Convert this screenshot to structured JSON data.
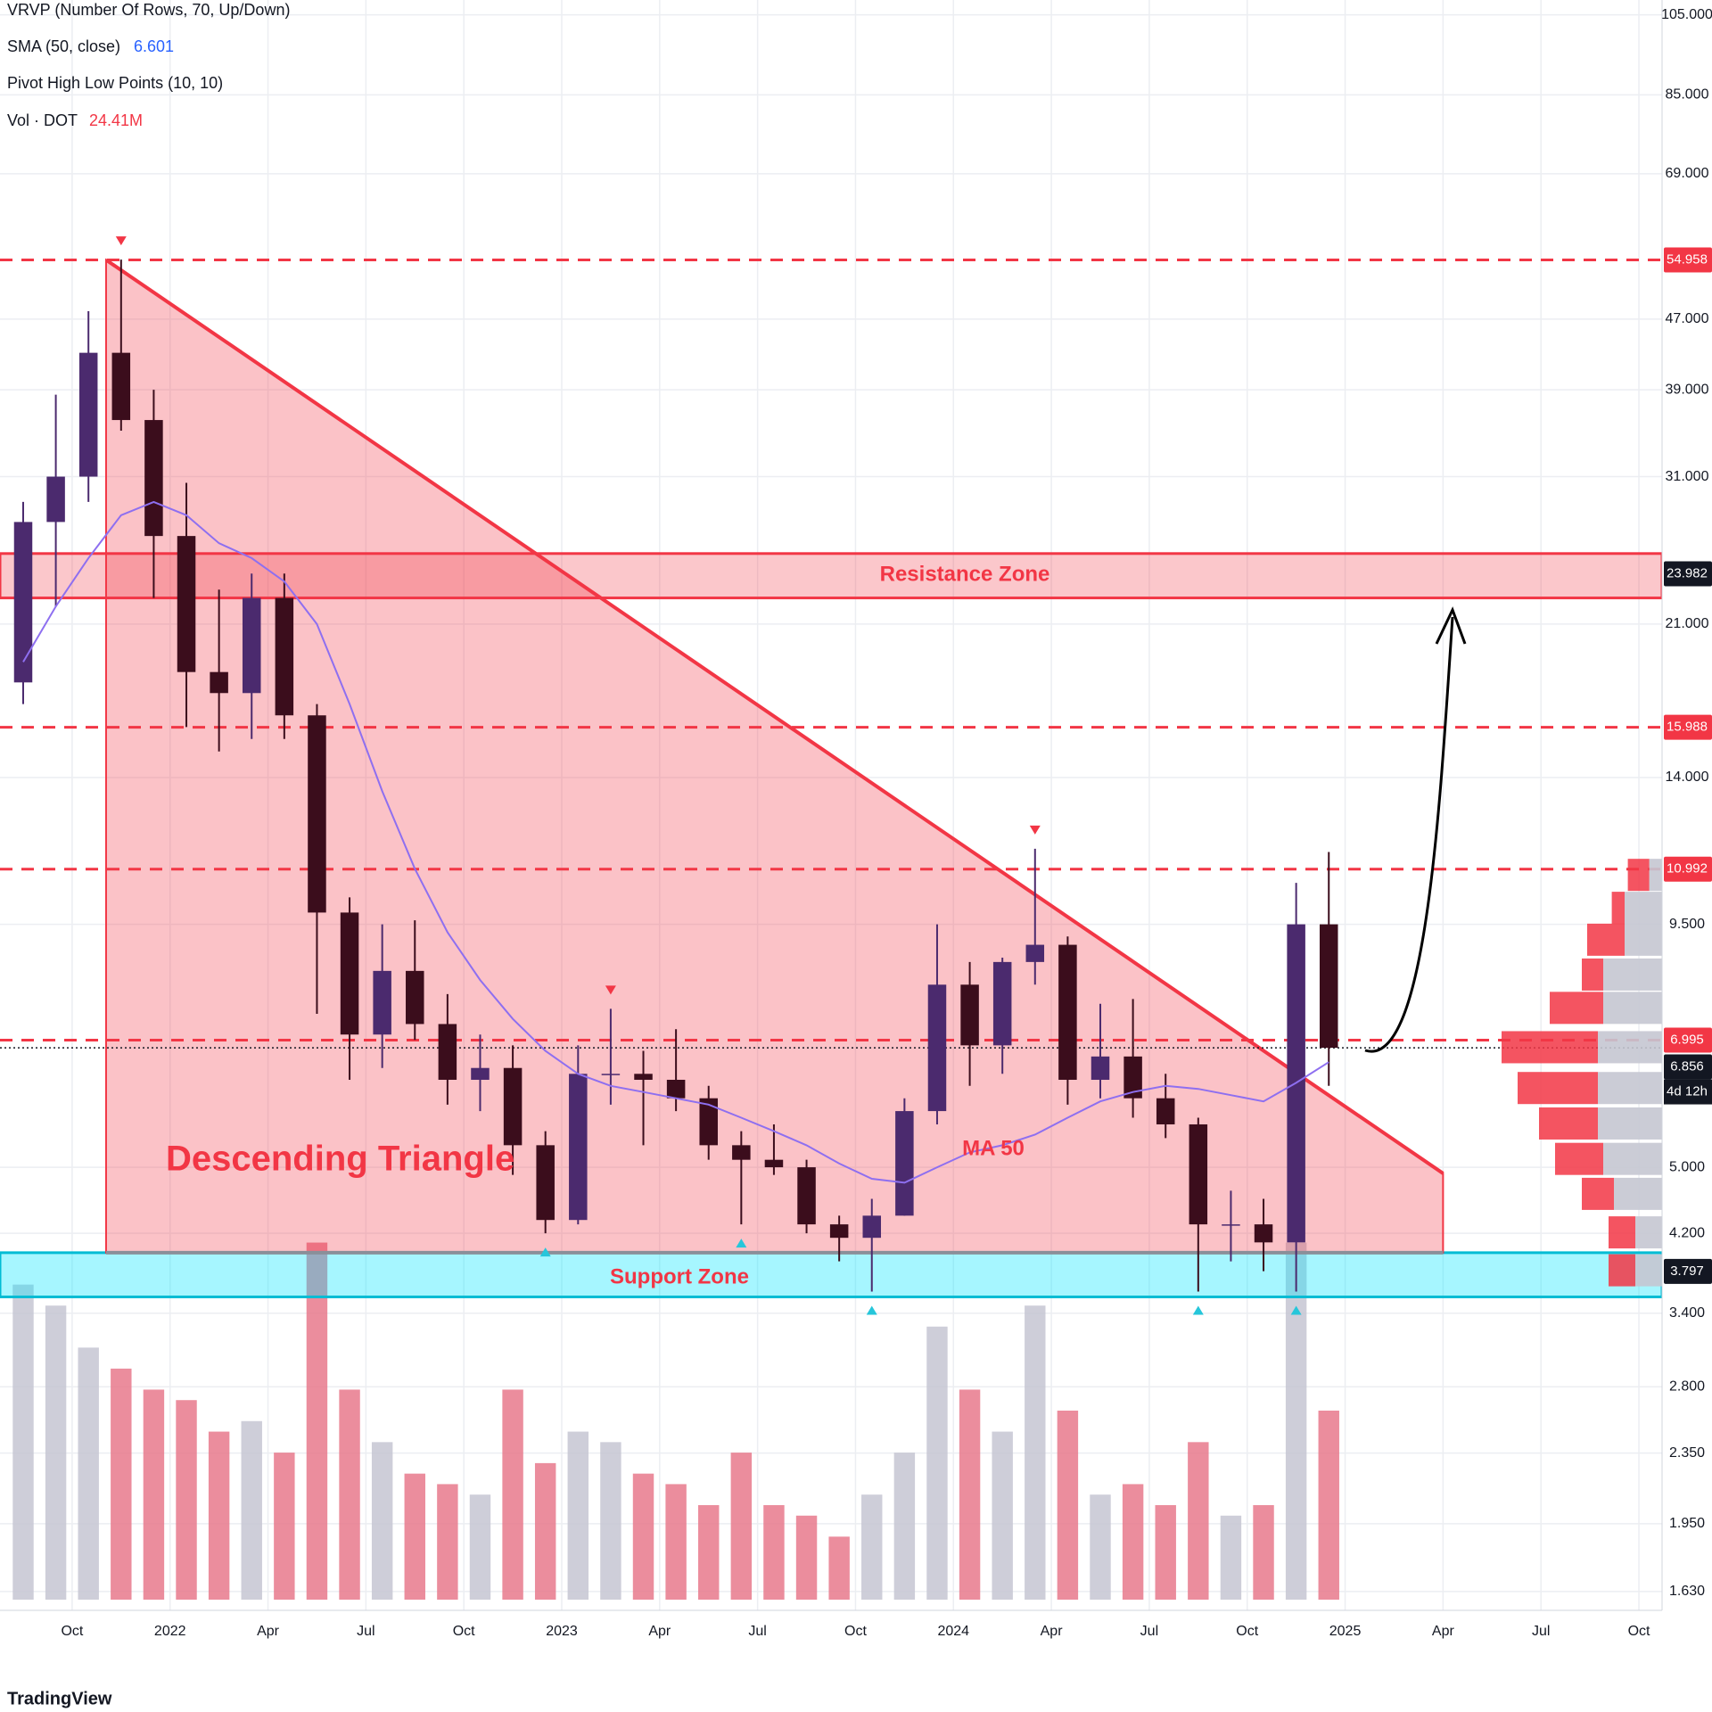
{
  "chart_data": {
    "type": "candlestick",
    "legend": [
      "VRVP (Number Of Rows, 70, Up/Down)",
      "SMA (50, close)",
      "Pivot High Low Points (10, 10)",
      "Vol · DOT"
    ],
    "volume_label": "24.41M",
    "brand": "TradingView",
    "annotations": {
      "triangle": "Descending Triangle",
      "resistance": "Resistance Zone",
      "support": "Support Zone",
      "ma": "MA 50"
    },
    "log_scale": true,
    "grid": true,
    "xlim": [
      -2.21,
      48.71
    ],
    "ylim": [
      1.551,
      109.2
    ],
    "xticks": [
      {
        "value": 0,
        "label": "Oct"
      },
      {
        "value": 3,
        "label": "2022"
      },
      {
        "value": 6,
        "label": "Apr"
      },
      {
        "value": 9,
        "label": "Jul"
      },
      {
        "value": 12,
        "label": "Oct"
      },
      {
        "value": 15,
        "label": "2023"
      },
      {
        "value": 18,
        "label": "Apr"
      },
      {
        "value": 21,
        "label": "Jul"
      },
      {
        "value": 24,
        "label": "Oct"
      },
      {
        "value": 27,
        "label": "2024"
      },
      {
        "value": 30,
        "label": "Apr"
      },
      {
        "value": 33,
        "label": "Jul"
      },
      {
        "value": 36,
        "label": "Oct"
      },
      {
        "value": 39,
        "label": "2025"
      },
      {
        "value": 42,
        "label": "Apr"
      },
      {
        "value": 45,
        "label": "Jul"
      },
      {
        "value": 48,
        "label": "Oct"
      }
    ],
    "yticks": [
      {
        "value": 105,
        "label": "105.000"
      },
      {
        "value": 85,
        "label": "85.000"
      },
      {
        "value": 69,
        "label": "69.000"
      },
      {
        "value": 47,
        "label": "47.000"
      },
      {
        "value": 39,
        "label": "39.000"
      },
      {
        "value": 31,
        "label": "31.000"
      },
      {
        "value": 21,
        "label": "21.000"
      },
      {
        "value": 14,
        "label": "14.000"
      },
      {
        "value": 9.5,
        "label": "9.500"
      },
      {
        "value": 5,
        "label": "5.000"
      },
      {
        "value": 4.2,
        "label": "4.200"
      },
      {
        "value": 3.4,
        "label": "3.400"
      },
      {
        "value": 2.8,
        "label": "2.800"
      },
      {
        "value": 2.35,
        "label": "2.350"
      },
      {
        "value": 1.95,
        "label": "1.950"
      },
      {
        "value": 1.63,
        "label": "1.630"
      }
    ],
    "x": [
      -1.5,
      -0.5,
      0.5,
      1.5,
      2.5,
      3.5,
      4.5,
      5.5,
      6.5,
      7.5,
      8.5,
      9.5,
      10.5,
      11.5,
      12.5,
      13.5,
      14.5,
      15.5,
      16.5,
      17.5,
      18.5,
      19.5,
      20.5,
      21.5,
      22.5,
      23.5,
      24.5,
      25.5,
      26.5,
      27.5,
      28.5,
      29.5,
      30.5,
      31.5,
      32.5,
      33.5,
      34.5,
      35.5,
      36.5,
      37.5,
      38.5
    ],
    "open": [
      18,
      27.5,
      31,
      43,
      36,
      26.5,
      18.5,
      17.5,
      22.5,
      16.5,
      9.8,
      7.1,
      8.4,
      7.3,
      6.3,
      6.5,
      5.3,
      4.35,
      6.4,
      6.4,
      6.3,
      6,
      5.3,
      5.1,
      5,
      4.3,
      4.15,
      4.4,
      5.8,
      8.1,
      6.9,
      8.6,
      9,
      6.3,
      6.7,
      6,
      5.6,
      4.3,
      4.3,
      4.1,
      9.5
    ],
    "high": [
      29,
      38.5,
      48,
      55,
      39,
      30.5,
      23,
      24,
      24,
      17,
      10.2,
      9.5,
      9.6,
      7.9,
      7.1,
      6.9,
      5.5,
      6.9,
      7.6,
      6.8,
      7.2,
      6.2,
      5.5,
      5.6,
      5.1,
      4.4,
      4.6,
      6,
      9.5,
      8.6,
      8.7,
      11.6,
      9.2,
      7.7,
      7.8,
      6.4,
      5.7,
      4.7,
      4.6,
      10.6,
      11.5
    ],
    "low": [
      17,
      22,
      29,
      35,
      22.5,
      16,
      15,
      15.5,
      15.5,
      7.5,
      6.3,
      6.5,
      7,
      5.9,
      5.8,
      4.9,
      4.2,
      4.3,
      5.9,
      5.3,
      5.8,
      5.1,
      4.3,
      4.9,
      4.2,
      3.9,
      3.6,
      4.4,
      5.6,
      6.2,
      6.4,
      8.1,
      5.9,
      6,
      5.7,
      5.4,
      3.6,
      3.9,
      3.8,
      3.6,
      6.2
    ],
    "close": [
      27.5,
      31,
      43,
      36,
      26.5,
      18.5,
      17.5,
      22.5,
      16.5,
      9.8,
      7.1,
      8.4,
      7.3,
      6.3,
      6.5,
      5.3,
      4.35,
      6.4,
      6.4,
      6.3,
      6,
      5.3,
      5.1,
      5,
      4.3,
      4.15,
      4.4,
      5.8,
      8.1,
      6.9,
      8.6,
      9,
      6.3,
      6.7,
      6,
      5.6,
      4.3,
      4.3,
      4.1,
      9.5,
      6.856
    ],
    "up_color": "#4b2a6e",
    "down_color": "#3b0d1c",
    "volume": {
      "values": [
        150,
        140,
        120,
        110,
        100,
        95,
        80,
        85,
        70,
        170,
        100,
        75,
        60,
        55,
        50,
        100,
        65,
        80,
        75,
        60,
        55,
        45,
        70,
        45,
        40,
        30,
        50,
        70,
        130,
        100,
        80,
        140,
        90,
        50,
        55,
        45,
        75,
        40,
        45,
        170,
        90
      ],
      "lim": [
        0,
        180
      ],
      "up_color": "#c5c6d2",
      "down_color": "#e8798c"
    },
    "sma": {
      "color": "#8e6ff0",
      "values": [
        19,
        22,
        25,
        28,
        29,
        28,
        26,
        25,
        23.5,
        21,
        17,
        13.5,
        11,
        9.3,
        8.2,
        7.4,
        6.8,
        6.4,
        6.2,
        6.1,
        6,
        5.9,
        5.7,
        5.5,
        5.3,
        5.05,
        4.85,
        4.8,
        5.0,
        5.2,
        5.3,
        5.45,
        5.7,
        5.95,
        6.1,
        6.2,
        6.15,
        6.05,
        5.95,
        6.25,
        6.601
      ]
    },
    "pivot_highs": [
      3,
      18,
      31
    ],
    "pivot_lows": [
      16,
      22,
      26,
      36,
      39
    ],
    "triangle": {
      "apex": [
        1.04,
        54.958
      ],
      "end": [
        42.0,
        4.92
      ],
      "base": 3.99,
      "color": "#f23645"
    },
    "resistance_zone": [
      22.5,
      25.3
    ],
    "support_zone": [
      3.55,
      3.99
    ],
    "price_tags": [
      {
        "value": 54.958,
        "color": "#f23645",
        "line": "dashed"
      },
      {
        "value": 23.982,
        "color": "#131722"
      },
      {
        "value": 15.988,
        "color": "#f23645",
        "line": "dashed"
      },
      {
        "value": 10.992,
        "color": "#f23645",
        "line": "dashed"
      },
      {
        "value": 6.995,
        "color": "#f23645",
        "line": "dashed"
      },
      {
        "value": 6.856,
        "color": "#131722",
        "line": "dotted",
        "note": "4d 12h"
      },
      {
        "value": 3.797,
        "color": "#131722"
      }
    ],
    "volume_profile": {
      "prices": [
        10.8,
        9.9,
        9.1,
        8.3,
        7.6,
        6.85,
        6.15,
        5.6,
        5.1,
        4.65,
        4.2,
        3.8
      ],
      "up": [
        12,
        35,
        35,
        55,
        55,
        60,
        60,
        60,
        55,
        45,
        25,
        25
      ],
      "down": [
        20,
        12,
        35,
        20,
        50,
        90,
        75,
        55,
        45,
        30,
        25,
        25
      ],
      "lim": [
        0,
        150
      ],
      "up_color": "#c5c6d2",
      "down_color": "#f23645"
    }
  }
}
